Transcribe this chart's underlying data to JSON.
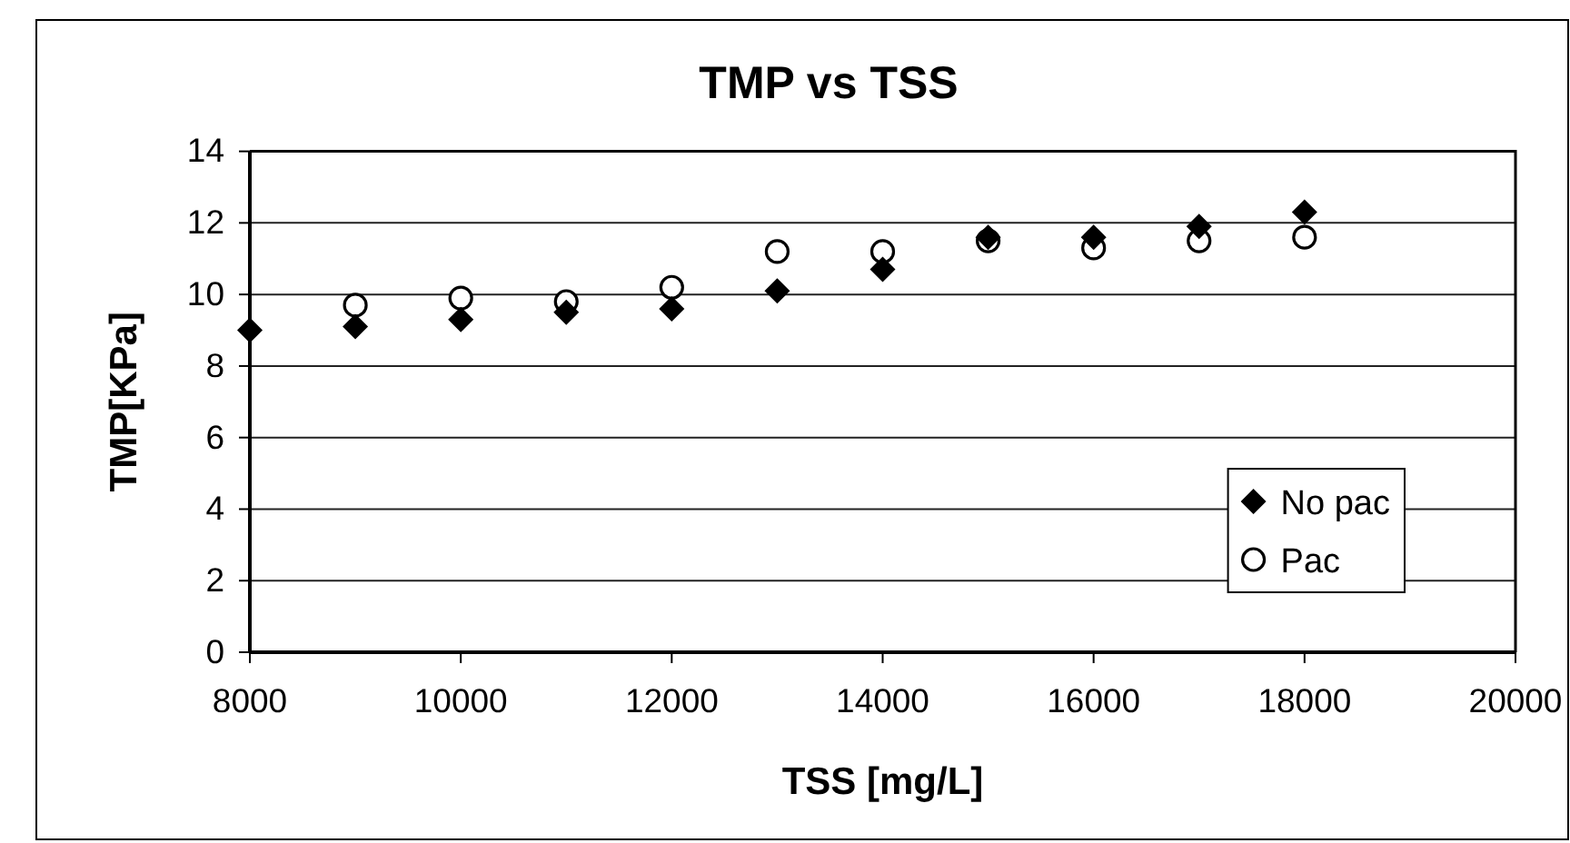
{
  "chart_data": {
    "type": "scatter",
    "title": "TMP vs TSS",
    "xlabel": "TSS [mg/L]",
    "ylabel": "TMP[KPa]",
    "series": [
      {
        "name": "No pac",
        "color": "#000000",
        "marker": "diamond",
        "x": [
          8000,
          9000,
          10000,
          11000,
          12000,
          13000,
          14000,
          15000,
          16000,
          17000,
          18000
        ],
        "values": [
          9.0,
          9.1,
          9.3,
          9.5,
          9.6,
          10.1,
          10.7,
          11.6,
          11.6,
          11.9,
          12.3
        ]
      },
      {
        "name": "Pac",
        "color": "#000000",
        "marker": "circle",
        "x": [
          9000,
          10000,
          11000,
          12000,
          13000,
          14000,
          15000,
          16000,
          17000,
          18000
        ],
        "values": [
          9.7,
          9.9,
          9.8,
          10.2,
          11.2,
          11.2,
          11.5,
          11.3,
          11.5,
          11.6
        ]
      }
    ],
    "xlim": [
      8000,
      20000
    ],
    "xticks": [
      8000,
      10000,
      12000,
      14000,
      16000,
      18000,
      20000
    ],
    "ylim": [
      0,
      14
    ],
    "yticks": [
      0,
      2,
      4,
      6,
      8,
      10,
      12,
      14
    ],
    "grid": "y",
    "legend": "bottom right"
  }
}
